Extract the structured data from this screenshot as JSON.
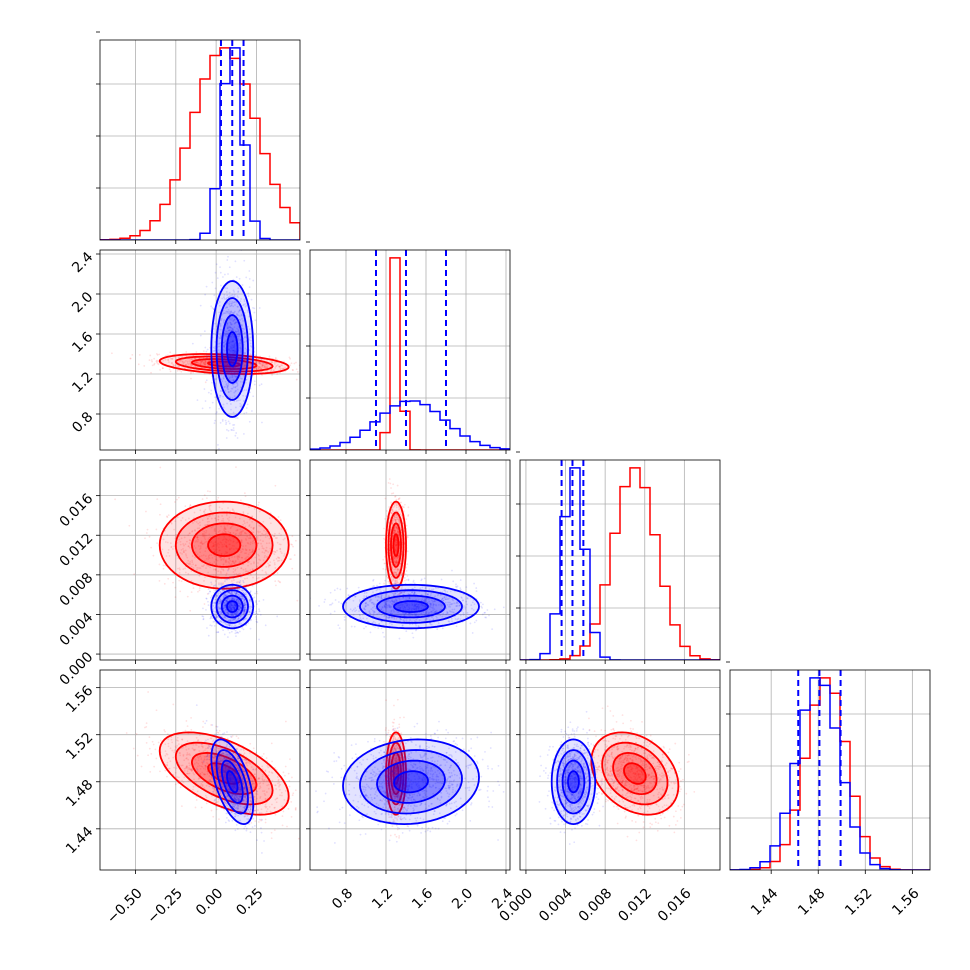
{
  "chart_data": {
    "type": "corner",
    "grid": true,
    "colors": {
      "red": "#ff0000",
      "blue": "#0000ff",
      "grid": "#b0b0b0"
    },
    "parameters": [
      {
        "range": [
          -0.72,
          0.52
        ],
        "ticks": [
          -0.5,
          -0.25,
          0.0,
          0.25
        ],
        "tick_labels": [
          "−0.50",
          "−0.25",
          "0.00",
          "0.25"
        ]
      },
      {
        "range": [
          0.44,
          2.44
        ],
        "ticks": [
          0.8,
          1.2,
          1.6,
          2.0,
          2.4
        ],
        "tick_labels": [
          "0.8",
          "1.2",
          "1.6",
          "2.0",
          "2.4"
        ]
      },
      {
        "range": [
          -0.0006,
          0.0196
        ],
        "ticks": [
          0.0,
          0.004,
          0.008,
          0.012,
          0.016
        ],
        "tick_labels": [
          "0.000",
          "0.004",
          "0.008",
          "0.012",
          "0.016"
        ]
      },
      {
        "range": [
          1.405,
          1.575
        ],
        "ticks": [
          1.44,
          1.48,
          1.52,
          1.56
        ],
        "tick_labels": [
          "1.44",
          "1.48",
          "1.52",
          "1.56"
        ]
      }
    ],
    "series": [
      {
        "color": "#ff0000",
        "mean": [
          0.05,
          1.3,
          0.011,
          1.487
        ],
        "sd": [
          0.2,
          0.05,
          0.0022,
          0.0175
        ],
        "corr": [
          [
            0,
            1,
            -0.3
          ],
          [
            0,
            3,
            -0.55
          ],
          [
            2,
            3,
            -0.3
          ]
        ],
        "quantile_lines": false
      },
      {
        "color": "#0000ff",
        "mean": [
          0.1,
          1.45,
          0.0048,
          1.48
        ],
        "sd": [
          0.065,
          0.34,
          0.0011,
          0.018
        ],
        "corr": [
          [
            0,
            3,
            -0.55
          ],
          [
            1,
            3,
            0.1
          ]
        ],
        "quantiles": [
          [
            0.03,
            0.1,
            0.17
          ],
          [
            1.1,
            1.4,
            1.8
          ],
          [
            0.0036,
            0.0047,
            0.0058
          ],
          [
            1.463,
            1.481,
            1.499
          ]
        ],
        "quantile_lines": true
      }
    ]
  }
}
